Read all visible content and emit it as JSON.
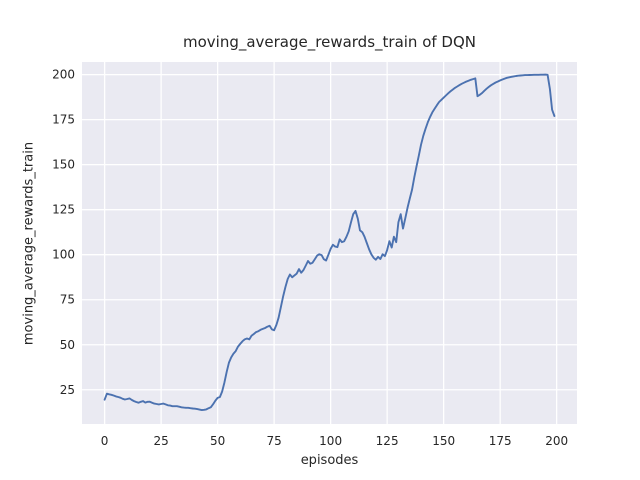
{
  "figure": {
    "title": "moving_average_rewards_train of DQN",
    "xlabel": "episodes",
    "ylabel": "moving_average_rewards_train"
  },
  "colors": {
    "plot_background": "#eaeaf2",
    "gridline": "#ffffff",
    "line": "#4c72b0",
    "text": "#262626",
    "figure_background": "#ffffff"
  },
  "chart_data": {
    "type": "line",
    "title": "moving_average_rewards_train of DQN",
    "xlabel": "episodes",
    "ylabel": "moving_average_rewards_train",
    "grid": true,
    "legend_position": "none",
    "x_ticks": [
      0,
      25,
      50,
      75,
      100,
      125,
      150,
      175,
      200
    ],
    "y_ticks": [
      25,
      50,
      75,
      100,
      125,
      150,
      175,
      200
    ],
    "xlim": [
      -10,
      209
    ],
    "ylim": [
      6,
      207
    ],
    "x_start": 0,
    "x_step": 1,
    "x_range": [
      0,
      199
    ],
    "series": [
      {
        "name": "moving_average_rewards_train",
        "values": [
          19.5,
          22.8,
          22.5,
          22.2,
          21.8,
          21.3,
          21.0,
          20.6,
          20.0,
          19.6,
          19.9,
          20.2,
          19.4,
          18.7,
          18.2,
          17.8,
          18.3,
          18.7,
          17.9,
          18.3,
          18.4,
          17.8,
          17.3,
          17.1,
          16.9,
          17.1,
          17.3,
          16.9,
          16.4,
          16.2,
          15.9,
          15.9,
          15.9,
          15.6,
          15.3,
          15.1,
          15.0,
          15.0,
          14.8,
          14.6,
          14.5,
          14.3,
          14.0,
          13.7,
          13.9,
          14.1,
          14.8,
          15.3,
          17.0,
          19.0,
          20.5,
          21.0,
          24.0,
          29.0,
          35.0,
          40.0,
          43.0,
          45.0,
          46.5,
          49.0,
          50.5,
          52.0,
          53.0,
          53.5,
          53.0,
          55.0,
          56.0,
          57.0,
          57.5,
          58.3,
          58.8,
          59.3,
          60.0,
          60.5,
          58.5,
          58.0,
          61.0,
          65.0,
          71.0,
          77.0,
          82.0,
          86.5,
          89.0,
          87.5,
          88.5,
          89.5,
          92.0,
          90.0,
          91.5,
          94.0,
          96.5,
          95.0,
          95.5,
          97.5,
          99.5,
          100.3,
          99.8,
          97.5,
          96.8,
          100.0,
          103.2,
          105.5,
          104.5,
          104.2,
          108.5,
          107.0,
          107.5,
          110.0,
          113.0,
          118.0,
          122.5,
          124.3,
          120.0,
          113.5,
          112.5,
          110.0,
          106.5,
          103.0,
          100.3,
          98.3,
          97.2,
          98.8,
          97.6,
          100.2,
          99.2,
          102.5,
          107.5,
          104.0,
          110.0,
          107.0,
          118.0,
          122.5,
          114.5,
          120.0,
          126.0,
          131.0,
          136.0,
          143.0,
          149.0,
          155.0,
          161.0,
          166.0,
          170.0,
          173.5,
          176.5,
          179.0,
          181.0,
          183.0,
          184.8,
          186.0,
          187.2,
          188.4,
          189.6,
          190.7,
          191.7,
          192.6,
          193.4,
          194.2,
          194.9,
          195.5,
          196.1,
          196.6,
          197.1,
          197.5,
          197.9,
          188.0,
          188.8,
          189.8,
          191.0,
          192.2,
          193.2,
          194.1,
          194.9,
          195.6,
          196.2,
          196.8,
          197.3,
          197.8,
          198.2,
          198.5,
          198.8,
          199.0,
          199.2,
          199.4,
          199.5,
          199.6,
          199.7,
          199.75,
          199.8,
          199.85,
          199.9,
          199.9,
          199.9,
          199.95,
          199.95,
          200.0,
          199.9,
          192.0,
          180.5,
          177.0
        ]
      }
    ]
  }
}
